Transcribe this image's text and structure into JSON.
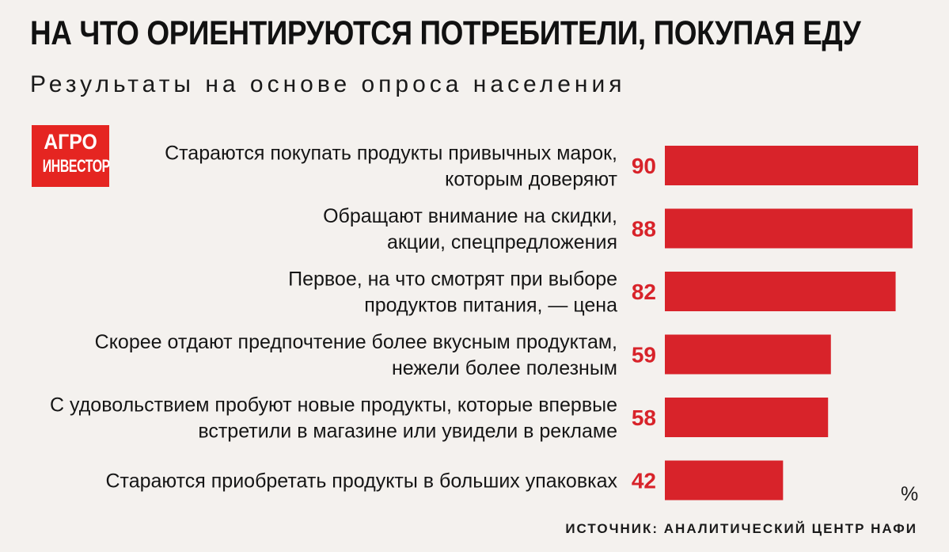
{
  "header": {
    "title": "НА ЧТО ОРИЕНТИРУЮТСЯ ПОТРЕБИТЕЛИ, ПОКУПАЯ ЕДУ",
    "subtitle": "Результаты на основе опроса населения"
  },
  "logo": {
    "line1": "АГРО",
    "line2": "ИНВЕСТОР"
  },
  "unit": "%",
  "source": "ИСТОЧНИК: АНАЛИТИЧЕСКИЙ ЦЕНТР НАФИ",
  "colors": {
    "bar": "#d8232a",
    "value_label": "#d8232a",
    "logo_bg": "#e52521"
  },
  "chart_data": {
    "type": "bar",
    "orientation": "horizontal",
    "title": "НА ЧТО ОРИЕНТИРУЮТСЯ ПОТРЕБИТЕЛИ, ПОКУПАЯ ЕДУ",
    "subtitle": "Результаты на основе опроса населения",
    "unit": "%",
    "grid": false,
    "legend": "none",
    "xlim": [
      0,
      90
    ],
    "categories": [
      [
        "Стараются покупать продукты привычных марок,",
        "которым доверяют"
      ],
      [
        "Обращают внимание на скидки,",
        "акции, спецпредложения"
      ],
      [
        "Первое, на что смотрят при выборе",
        "продуктов питания, — цена"
      ],
      [
        "Скорее отдают предпочтение более вкусным продуктам,",
        "нежели более полезным"
      ],
      [
        "С удовольствием пробуют новые продукты, которые впервые",
        "встретили в магазине или увидели в рекламе"
      ],
      [
        "Стараются приобретать продукты в больших упаковках"
      ]
    ],
    "values": [
      90,
      88,
      82,
      59,
      58,
      42
    ]
  }
}
